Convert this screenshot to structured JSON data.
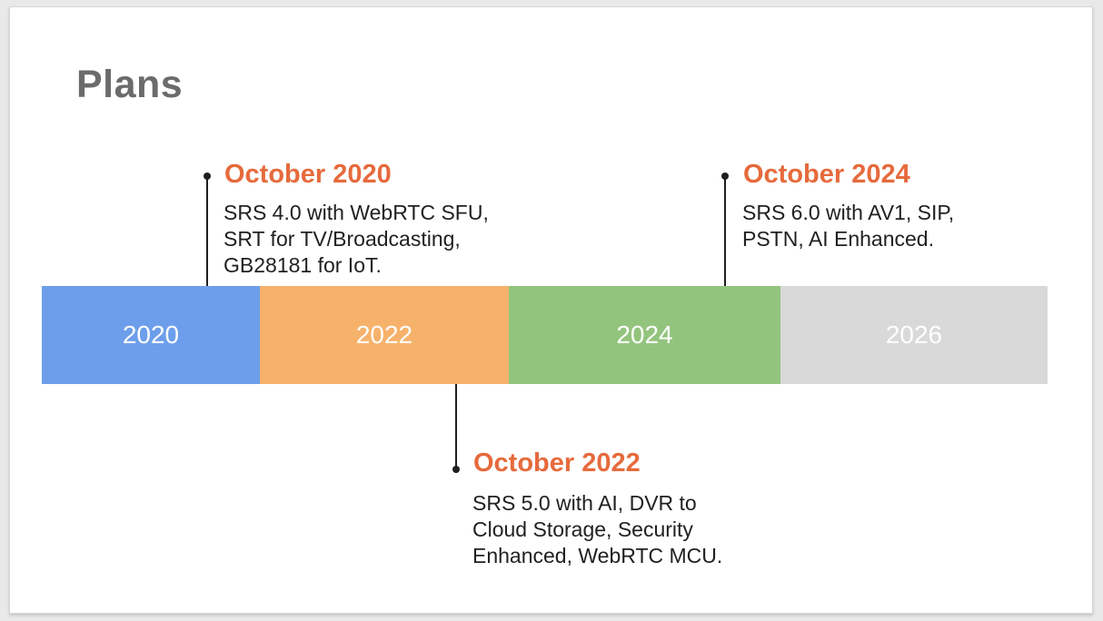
{
  "canvas": {
    "background_color": "#e9e9e9"
  },
  "slide": {
    "title": "Plans",
    "title_color": "#6b6b6b",
    "accent_color": "#e66a3c",
    "text_color": "#212121",
    "connector_color": "#1f1f1f",
    "callouts": [
      {
        "title": "October 2020",
        "body": "SRS 4.0 with WebRTC SFU,\nSRT for TV/Broadcasting,\nGB28181 for IoT.",
        "side": "above-bar"
      },
      {
        "title": "October 2022",
        "body": "SRS 5.0 with AI, DVR to\nCloud Storage, Security\nEnhanced, WebRTC MCU.",
        "side": "below-bar"
      },
      {
        "title": "October 2024",
        "body": "SRS 6.0 with AV1, SIP,\nPSTN, AI Enhanced.",
        "side": "above-bar"
      }
    ],
    "timeline": {
      "label_color": "#ffffff",
      "segments": [
        {
          "label": "2020",
          "color": "#6d9eeb"
        },
        {
          "label": "2022",
          "color": "#f6b26b"
        },
        {
          "label": "2024",
          "color": "#93c47d"
        },
        {
          "label": "2026",
          "color": "#d9d9d9"
        }
      ]
    }
  }
}
